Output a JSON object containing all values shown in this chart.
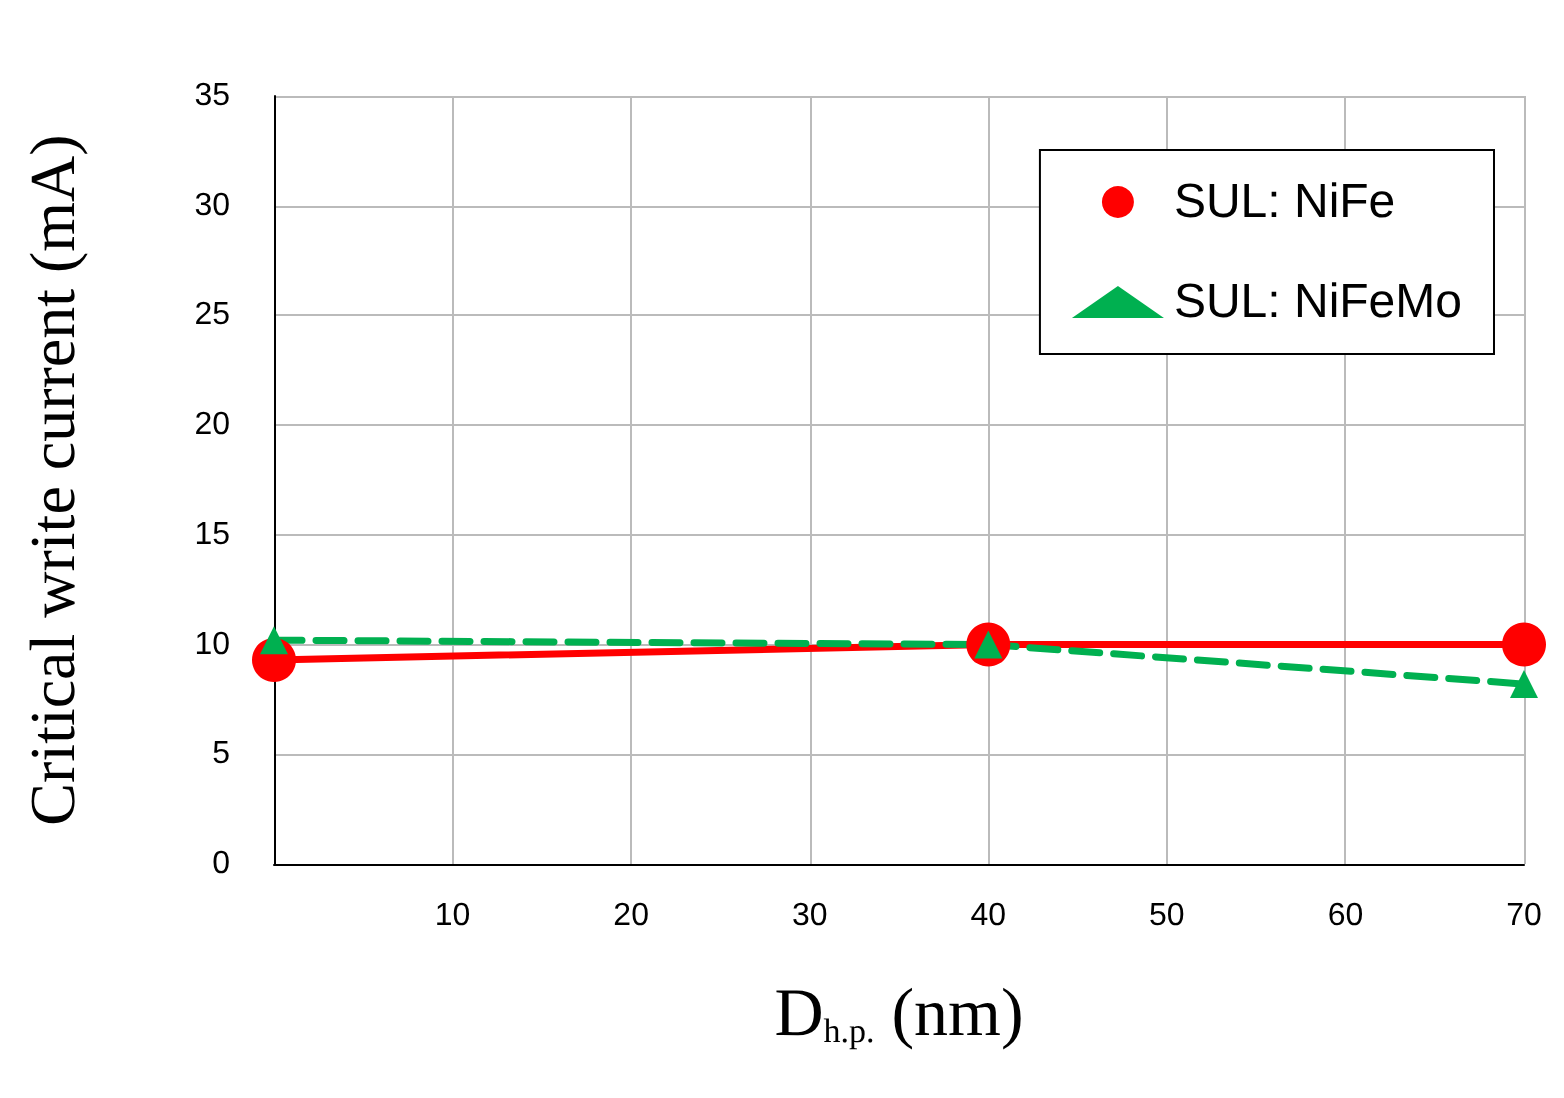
{
  "chart_data": {
    "type": "line",
    "xlabel": "D$_{h.p.}$ (nm)",
    "ylabel": "Critical write current (mA)",
    "xlim": [
      0,
      70
    ],
    "xticks": [
      {
        "value": 0,
        "label": null
      },
      10,
      20,
      30,
      40,
      50,
      60,
      70
    ],
    "ylim": [
      0,
      35
    ],
    "yticks": [
      0,
      5,
      10,
      15,
      20,
      25,
      30,
      35
    ],
    "grid": true,
    "legend": "top right",
    "series": [
      {
        "name": "SUL: NiFe",
        "color": "#ff0000",
        "x": [
          0,
          40,
          70
        ],
        "values": [
          9.3,
          10,
          10
        ],
        "marker": "circle",
        "line_style": "solid"
      },
      {
        "name": "SUL: NiFeMo",
        "color": "#00b050",
        "x": [
          0,
          40,
          70
        ],
        "values": [
          10.2,
          10,
          8.2
        ],
        "marker": "triangle",
        "line_style": "dashed"
      }
    ]
  }
}
